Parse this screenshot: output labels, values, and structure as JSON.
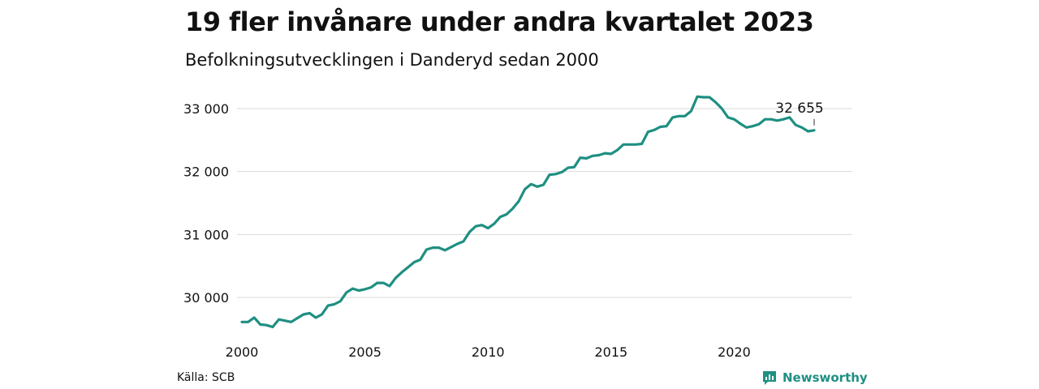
{
  "header": {
    "title": "19 fler invånare under andra kvartalet 2023",
    "subtitle": "Befolkningsutvecklingen i Danderyd sedan 2000"
  },
  "footer": {
    "source": "Källa: SCB",
    "brand": "Newsworthy",
    "brand_icon": "newsworthy-logo-icon"
  },
  "colors": {
    "line": "#1f8f82",
    "grid": "#d9d9d9",
    "brand": "#1f8f82"
  },
  "chart_data": {
    "type": "line",
    "title": "19 fler invånare under andra kvartalet 2023",
    "subtitle": "Befolkningsutvecklingen i Danderyd sedan 2000",
    "xlabel": "",
    "ylabel": "",
    "xlim": [
      2000,
      2025
    ],
    "ylim": [
      29500,
      33200
    ],
    "grid": "horizontal",
    "x_ticks": [
      {
        "value": 2000,
        "label": "2000"
      },
      {
        "value": 2005,
        "label": "2005"
      },
      {
        "value": 2010,
        "label": "2010"
      },
      {
        "value": 2015,
        "label": "2015"
      },
      {
        "value": 2020,
        "label": "2020"
      }
    ],
    "y_ticks": [
      {
        "value": 30000,
        "label": "30 000"
      },
      {
        "value": 31000,
        "label": "31 000"
      },
      {
        "value": 32000,
        "label": "32 000"
      },
      {
        "value": 33000,
        "label": "33 000"
      }
    ],
    "annotation": {
      "x": 2023.25,
      "y": 32655,
      "label": "32 655"
    },
    "series": [
      {
        "x": [
          2000.0,
          2000.25,
          2000.5,
          2000.75,
          2001.0,
          2001.25,
          2001.5,
          2001.75,
          2002.0,
          2002.25,
          2002.5,
          2002.75,
          2003.0,
          2003.25,
          2003.5,
          2003.75,
          2004.0,
          2004.25,
          2004.5,
          2004.75,
          2005.0,
          2005.25,
          2005.5,
          2005.75,
          2006.0,
          2006.25,
          2006.5,
          2006.75,
          2007.0,
          2007.25,
          2007.5,
          2007.75,
          2008.0,
          2008.25,
          2008.5,
          2008.75,
          2009.0,
          2009.25,
          2009.5,
          2009.75,
          2010.0,
          2010.25,
          2010.5,
          2010.75,
          2011.0,
          2011.25,
          2011.5,
          2011.75,
          2012.0,
          2012.25,
          2012.5,
          2012.75,
          2013.0,
          2013.25,
          2013.5,
          2013.75,
          2014.0,
          2014.25,
          2014.5,
          2014.75,
          2015.0,
          2015.25,
          2015.5,
          2015.75,
          2016.0,
          2016.25,
          2016.5,
          2016.75,
          2017.0,
          2017.25,
          2017.5,
          2017.75,
          2018.0,
          2018.25,
          2018.5,
          2018.75,
          2019.0,
          2019.25,
          2019.5,
          2019.75,
          2020.0,
          2020.25,
          2020.5,
          2020.75,
          2021.0,
          2021.25,
          2021.5,
          2021.75,
          2022.0,
          2022.25,
          2022.5,
          2022.75,
          2023.0,
          2023.25
        ],
        "y": [
          29610,
          29610,
          29680,
          29570,
          29560,
          29530,
          29650,
          29630,
          29610,
          29670,
          29730,
          29750,
          29680,
          29730,
          29870,
          29890,
          29940,
          30080,
          30140,
          30110,
          30130,
          30160,
          30230,
          30230,
          30180,
          30310,
          30400,
          30480,
          30560,
          30600,
          30760,
          30790,
          30790,
          30750,
          30800,
          30850,
          30890,
          31040,
          31130,
          31150,
          31100,
          31170,
          31280,
          31320,
          31410,
          31530,
          31720,
          31800,
          31760,
          31790,
          31950,
          31960,
          31990,
          32060,
          32070,
          32220,
          32210,
          32250,
          32260,
          32290,
          32280,
          32340,
          32430,
          32430,
          32430,
          32440,
          32630,
          32660,
          32710,
          32720,
          32860,
          32880,
          32880,
          32960,
          33190,
          33180,
          33180,
          33100,
          33000,
          32860,
          32830,
          32760,
          32700,
          32720,
          32750,
          32830,
          32830,
          32810,
          32830,
          32860,
          32740,
          32700,
          32640,
          32655
        ]
      }
    ]
  }
}
